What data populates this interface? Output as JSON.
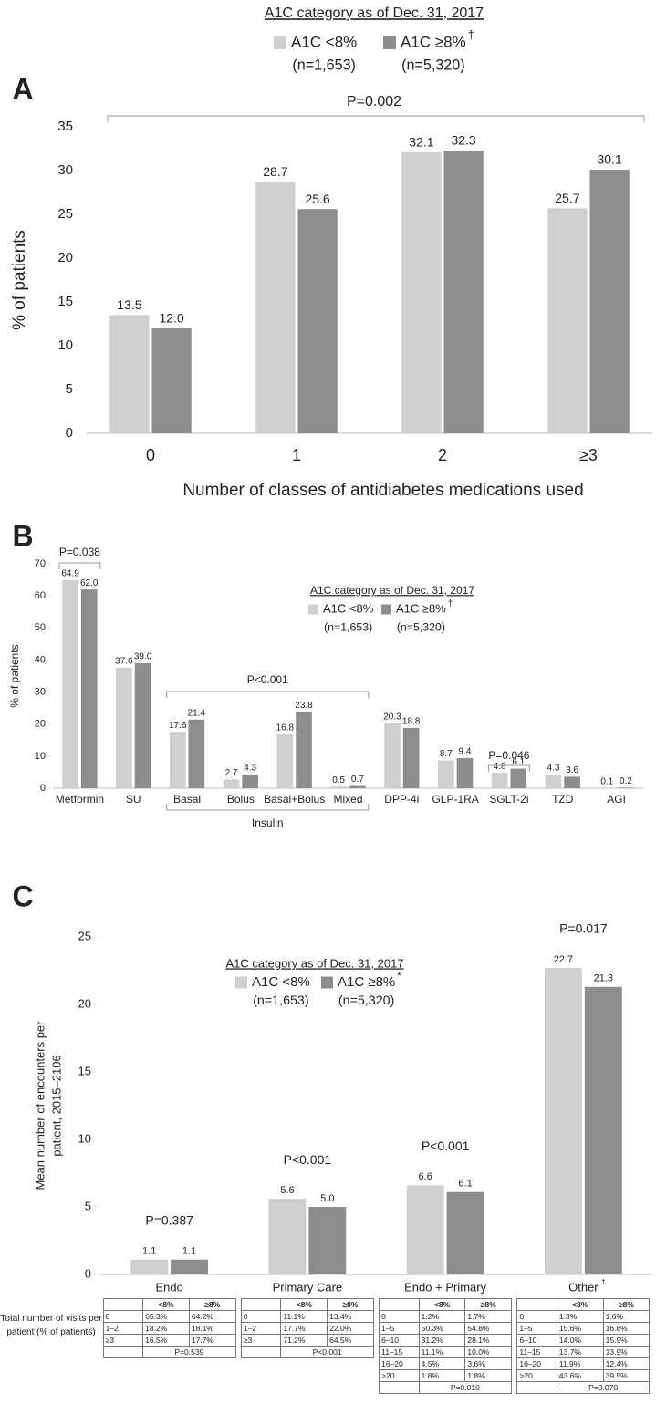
{
  "chart_data": [
    {
      "type": "bar",
      "panel": "A",
      "legend_title": "A1C category as of Dec. 31, 2017",
      "categories": [
        "0",
        "1",
        "2",
        "≥3"
      ],
      "series": [
        {
          "name": "A1C <8%",
          "note": "(n=1,653)",
          "color": "#cfcfcf",
          "values": [
            13.5,
            28.7,
            32.1,
            25.7
          ],
          "value_labels": [
            "13.5",
            "28.7",
            "32.1",
            "25.7"
          ]
        },
        {
          "name": "A1C ≥8%",
          "marker": "†",
          "note": "(n=5,320)",
          "color": "#8d8d8d",
          "values": [
            12.0,
            25.6,
            32.3,
            30.1
          ],
          "value_labels": [
            "12.0",
            "25.6",
            "32.3",
            "30.1"
          ]
        }
      ],
      "xlabel": "Number of classes of antidiabetes medications used",
      "ylabel": "% of patients",
      "ylim": [
        0,
        35
      ],
      "yticks": [
        0,
        5,
        10,
        15,
        20,
        25,
        30,
        35
      ],
      "annotations": [
        "P=0.002"
      ]
    },
    {
      "type": "bar",
      "panel": "B",
      "legend_title": "A1C category as of Dec. 31, 2017",
      "categories": [
        "Metformin",
        "SU",
        "Basal",
        "Bolus",
        "Basal+Bolus",
        "Mixed",
        "DPP-4i",
        "GLP-1RA",
        "SGLT-2i",
        "TZD",
        "AGI"
      ],
      "series": [
        {
          "name": "A1C <8%",
          "note": "(n=1,653)",
          "color": "#cfcfcf",
          "values": [
            64.9,
            37.6,
            17.6,
            2.7,
            16.8,
            0.5,
            20.3,
            8.7,
            4.8,
            4.3,
            0.1
          ],
          "value_labels": [
            "64.9",
            "37.6",
            "17.6",
            "2.7",
            "16.8",
            "0.5",
            "20.3",
            "8.7",
            "4.8",
            "4.3",
            "0.1"
          ]
        },
        {
          "name": "A1C ≥8%",
          "marker": "†",
          "note": "(n=5,320)",
          "color": "#8d8d8d",
          "values": [
            62.0,
            39.0,
            21.4,
            4.3,
            23.8,
            0.7,
            18.8,
            9.4,
            6.1,
            3.6,
            0.2
          ],
          "value_labels": [
            "62.0",
            "39.0",
            "21.4",
            "4.3",
            "23.8",
            "0.7",
            "18.8",
            "9.4",
            "6.1",
            "3.6",
            "0.2"
          ]
        }
      ],
      "ylabel": "% of patients",
      "ylim": [
        0,
        70
      ],
      "yticks": [
        0,
        10,
        20,
        30,
        40,
        50,
        60,
        70
      ],
      "annotations": [
        "P=0.038",
        "P<0.001",
        "P=0.046"
      ],
      "group_label": "Insulin"
    },
    {
      "type": "bar",
      "panel": "C",
      "legend_title": "A1C category as of Dec. 31, 2017",
      "categories": [
        "Endo",
        "Primary Care",
        "Endo + Primary",
        "Other"
      ],
      "series": [
        {
          "name": "A1C <8%",
          "note": "(n=1,653)",
          "color": "#cfcfcf",
          "values": [
            1.1,
            5.6,
            6.6,
            22.7
          ],
          "value_labels": [
            "1.1",
            "5.6",
            "6.6",
            "22.7"
          ]
        },
        {
          "name": "A1C ≥8%",
          "marker": "*",
          "note": "(n=5,320)",
          "color": "#8d8d8d",
          "values": [
            1.1,
            5.0,
            6.1,
            21.3
          ],
          "value_labels": [
            "1.1",
            "5.0",
            "6.1",
            "21.3"
          ],
          "note_marks": [
            null,
            null,
            null,
            "†"
          ]
        }
      ],
      "ylabel": [
        "Mean number of encounters per",
        "patient, 2015–2106"
      ],
      "ylim": [
        0,
        25
      ],
      "yticks": [
        0,
        5,
        10,
        15,
        20,
        25
      ],
      "p_values": [
        "P=0.387",
        "P<0.001",
        "P<0.001",
        "P=0.017"
      ],
      "table_row_label": "Total number of visits per patient (% of patients)",
      "tables": [
        {
          "header": [
            "<8%",
            "≥8%"
          ],
          "rows": [
            [
              "0",
              "65.3%",
              "64.2%"
            ],
            [
              "1–2",
              "18.2%",
              "18.1%"
            ],
            [
              "≥3",
              "16.5%",
              "17.7%"
            ]
          ],
          "p_value": "P=0.539"
        },
        {
          "header": [
            "<8%",
            "≥8%"
          ],
          "rows": [
            [
              "0",
              "11.1%",
              "13.4%"
            ],
            [
              "1–2",
              "17.7%",
              "22.0%"
            ],
            [
              "≥3",
              "71.2%",
              "64.5%"
            ]
          ],
          "p_value": "P<0.001"
        },
        {
          "header": [
            "<8%",
            "≥8%"
          ],
          "rows": [
            [
              "0",
              "1.2%",
              "1.7%"
            ],
            [
              "1–5",
              "50.3%",
              "54.8%"
            ],
            [
              "6–10",
              "31.2%",
              "28.1%"
            ],
            [
              "11–15",
              "11.1%",
              "10.0%"
            ],
            [
              "16–20",
              "4.5%",
              "3.6%"
            ],
            [
              ">20",
              "1.8%",
              "1.8%"
            ]
          ],
          "p_value": "P=0.010"
        },
        {
          "header": [
            "<8%",
            "≥8%"
          ],
          "rows": [
            [
              "0",
              "1.3%",
              "1.6%"
            ],
            [
              "1–5",
              "15.6%",
              "16.8%"
            ],
            [
              "6–10",
              "14.0%",
              "15.9%"
            ],
            [
              "11–15",
              "13.7%",
              "13.9%"
            ],
            [
              "16–20",
              "11.9%",
              "12.4%"
            ],
            [
              ">20",
              "43.6%",
              "39.5%"
            ]
          ],
          "p_value": "P=0.070"
        }
      ]
    }
  ]
}
